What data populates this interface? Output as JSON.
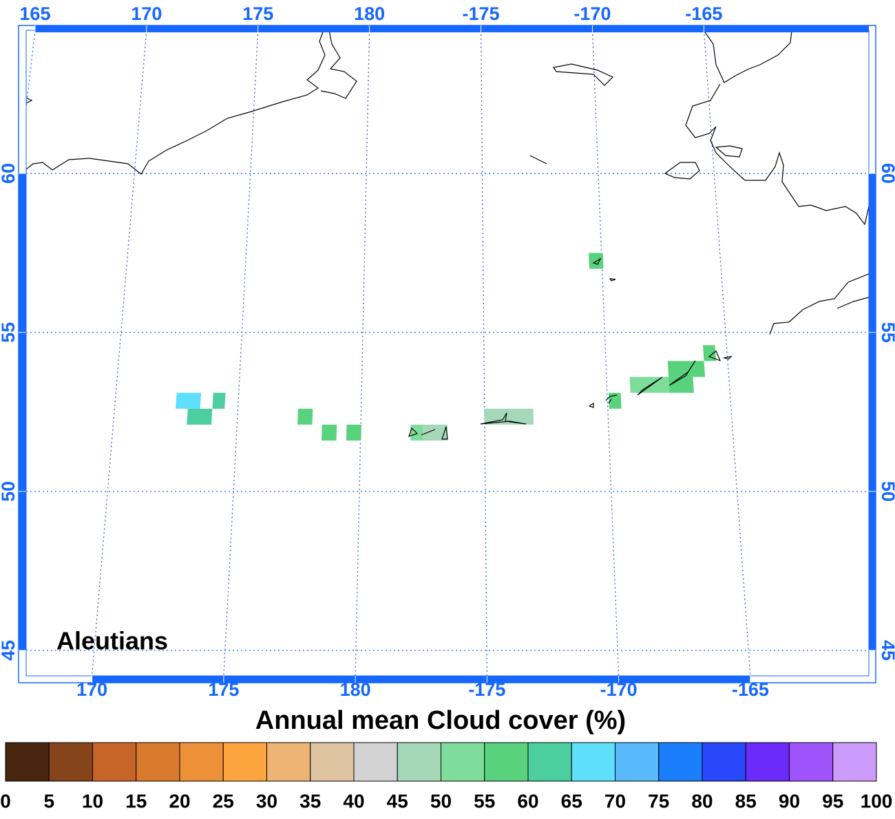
{
  "map": {
    "label": "Aleutians",
    "axis_color": "#1667ff",
    "grid": true,
    "lat_range": [
      44.2,
      64.5
    ],
    "top_lon_range": [
      164.6,
      -157.6
    ],
    "bottom_lon_range": [
      167.5,
      -160.5
    ],
    "top_lon_ticks": [
      165,
      170,
      175,
      180,
      -175,
      -170,
      -165
    ],
    "bottom_lon_ticks": [
      170,
      175,
      180,
      -175,
      -170,
      -165
    ],
    "lat_ticks": [
      60,
      55,
      50,
      45
    ],
    "cells": [
      {
        "lon": [
          172.4,
          173.4
        ],
        "lat": [
          52.6,
          53.1
        ],
        "value": 67.5
      },
      {
        "lon": [
          173.9,
          174.4
        ],
        "lat": [
          52.6,
          53.1
        ],
        "value": 62.5
      },
      {
        "lon": [
          172.9,
          173.9
        ],
        "lat": [
          52.1,
          52.6
        ],
        "value": 62.5
      },
      {
        "lon": [
          177.4,
          178.0
        ],
        "lat": [
          52.1,
          52.6
        ],
        "value": 57.5
      },
      {
        "lon": [
          178.4,
          179.0
        ],
        "lat": [
          51.6,
          52.1
        ],
        "value": 57.5
      },
      {
        "lon": [
          179.4,
          180.0
        ],
        "lat": [
          51.6,
          52.1
        ],
        "value": 57.5
      },
      {
        "lon": [
          -178.0,
          -177.5
        ],
        "lat": [
          51.6,
          52.1
        ],
        "value": 52.5
      },
      {
        "lon": [
          -177.5,
          -176.5
        ],
        "lat": [
          51.6,
          52.1
        ],
        "value": 47.5
      },
      {
        "lon": [
          -175.0,
          -173.0
        ],
        "lat": [
          52.1,
          52.6
        ],
        "value": 47.5
      },
      {
        "lon": [
          -170.5,
          -169.9
        ],
        "lat": [
          57.0,
          57.5
        ],
        "value": 57.5
      },
      {
        "lon": [
          -169.9,
          -169.4
        ],
        "lat": [
          52.6,
          53.1
        ],
        "value": 57.5
      },
      {
        "lon": [
          -169.0,
          -167.4
        ],
        "lat": [
          53.1,
          53.6
        ],
        "value": 52.5
      },
      {
        "lon": [
          -167.4,
          -166.4
        ],
        "lat": [
          53.1,
          53.6
        ],
        "value": 57.5
      },
      {
        "lon": [
          -167.4,
          -165.9
        ],
        "lat": [
          53.6,
          54.1
        ],
        "value": 57.5
      },
      {
        "lon": [
          -165.9,
          -165.4
        ],
        "lat": [
          54.1,
          54.6
        ],
        "value": 57.5
      }
    ]
  },
  "colorbar": {
    "title": "Annual mean Cloud cover (%)",
    "ticks": [
      0,
      5,
      10,
      15,
      20,
      25,
      30,
      35,
      40,
      45,
      50,
      55,
      60,
      65,
      70,
      75,
      80,
      85,
      90,
      95,
      100
    ],
    "colors": [
      "#47250f",
      "#85441a",
      "#c76528",
      "#d97b2d",
      "#ec9138",
      "#fca53e",
      "#edb476",
      "#e0c4a2",
      "#d3d3d3",
      "#a5d8b6",
      "#7fdd9c",
      "#58d27c",
      "#4ccea0",
      "#5edffb",
      "#58b9fb",
      "#1a7dfb",
      "#2a48fb",
      "#6a2bfb",
      "#9e53fb",
      "#cc9bfb"
    ]
  }
}
